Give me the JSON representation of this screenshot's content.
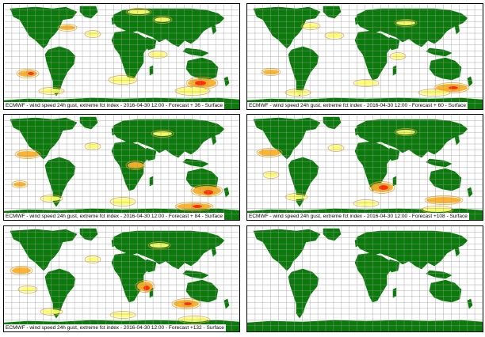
{
  "panels": [
    {
      "caption": "ECMWF - wind speed 24h gust, extreme fct index - 2016-04-30 12:00 - Forecast + 36 - Surface"
    },
    {
      "caption": "ECMWF - wind speed 24h gust, extreme fct index - 2016-04-30 12:00 - Forecast + 60 - Surface"
    },
    {
      "caption": "ECMWF - wind speed 24h gust, extreme fct index - 2016-04-30 12:00 - Forecast + 84 - Surface"
    },
    {
      "caption": "ECMWF - wind speed 24h gust, extreme fct index - 2016-04-30 12:00 - Forecast +108 - Surface"
    },
    {
      "caption": "ECMWF - wind speed 24h gust, extreme fct index - 2016-04-30 12:00 - Forecast +132 - Surface"
    },
    {
      "caption": ""
    }
  ],
  "colors": {
    "land": "#0a7a0a",
    "grid": "#9a9a9a",
    "contour": "#e8a030",
    "low": "#ffff66",
    "mid": "#ffb020",
    "high": "#ff2a00"
  }
}
